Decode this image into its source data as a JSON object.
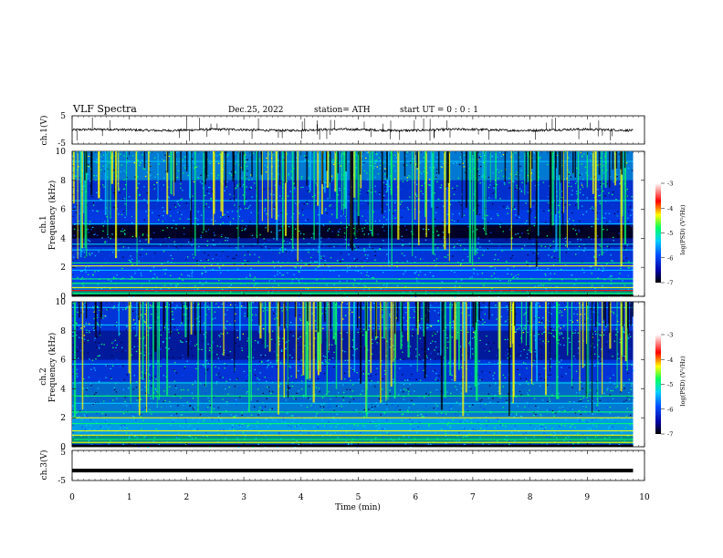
{
  "header": {
    "title": "VLF  Spectra",
    "date": "Dec.25, 2022",
    "station": "station= ATH",
    "start_ut": "start  UT  =   0 : 0  : 1"
  },
  "colors": {
    "background_dark": "#0a0a6e",
    "navy": "#001a9c",
    "blue": "#0046ff",
    "cyan": "#00c8ff",
    "green": "#00ff6a",
    "yellow": "#ffff00",
    "red": "#ff0000"
  },
  "chart_data": [
    {
      "type": "line",
      "panel": "ch1-waveform",
      "ylabel": "ch.1(V)",
      "ylim": [
        -5,
        5
      ],
      "yticks": [
        "5",
        "-5"
      ],
      "xlim": [
        0,
        10
      ],
      "baseline_value": 0,
      "noise_amplitude": 0.4
    },
    {
      "type": "heatmap",
      "panel": "ch1-spectrogram",
      "ylabel_top": "ch.1",
      "ylabel": "Frequency  (kHz)",
      "ylim": [
        0,
        10
      ],
      "yticks": [
        "10",
        "8",
        "6",
        "4",
        "2",
        "0"
      ],
      "xlim": [
        0,
        9.8
      ],
      "colorbar": {
        "label": "log(PSD) (V²/Hz)",
        "range": [
          -7,
          -3
        ],
        "ticks": [
          "-3",
          "-4",
          "-5",
          "-6",
          "-7"
        ]
      }
    },
    {
      "type": "heatmap",
      "panel": "ch2-spectrogram",
      "ylabel_top": "ch.2",
      "ylabel": "Frequency  (kHz)",
      "ylim": [
        0,
        10
      ],
      "yticks": [
        "10",
        "8",
        "6",
        "4",
        "2",
        "0"
      ],
      "xlim": [
        0,
        9.8
      ],
      "colorbar": {
        "label": "log(PSD) (V²/Hz)",
        "range": [
          -7,
          -3
        ],
        "ticks": [
          "-3",
          "-4",
          "-5",
          "-6",
          "-7"
        ]
      }
    },
    {
      "type": "line",
      "panel": "ch3-waveform",
      "ylabel": "ch.3(V)",
      "ylim": [
        -5,
        5
      ],
      "yticks": [
        "5",
        "-5"
      ],
      "xlim": [
        0,
        9.8
      ],
      "baseline_value": -1.7
    }
  ],
  "xaxis": {
    "label": "Time  (min)",
    "ticks": [
      "0",
      "1",
      "2",
      "3",
      "4",
      "5",
      "6",
      "7",
      "8",
      "9",
      "10"
    ]
  }
}
